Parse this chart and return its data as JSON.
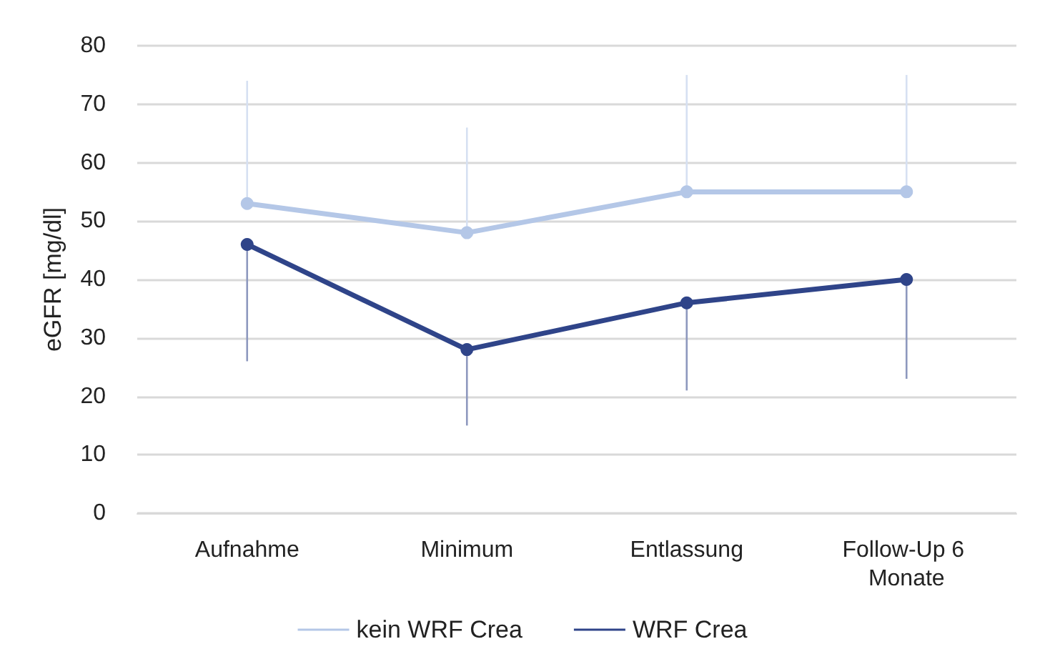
{
  "chart_data": {
    "type": "line",
    "ylabel": "eGFR [mg/dl]",
    "categories": [
      "Aufnahme",
      "Minimum",
      "Entlassung",
      "Follow-Up 6 Monate"
    ],
    "series": [
      {
        "name": "kein WRF Crea",
        "color": "#b4c7e7",
        "values": [
          53,
          48,
          55,
          55
        ],
        "errors": [
          [
            53,
            74
          ],
          [
            48,
            66
          ],
          [
            55,
            75
          ],
          [
            55,
            75
          ]
        ]
      },
      {
        "name": "WRF Crea",
        "color": "#2f4489",
        "values": [
          46,
          28,
          36,
          40
        ],
        "errors": [
          [
            26,
            46
          ],
          [
            15,
            28
          ],
          [
            21,
            36
          ],
          [
            23,
            40
          ]
        ]
      }
    ],
    "ylim": [
      0,
      80
    ],
    "yticks": [
      0,
      10,
      20,
      30,
      40,
      50,
      60,
      70,
      80
    ],
    "grid": "y",
    "legend": "bottom",
    "marker": "circle",
    "line_style": "solid"
  }
}
